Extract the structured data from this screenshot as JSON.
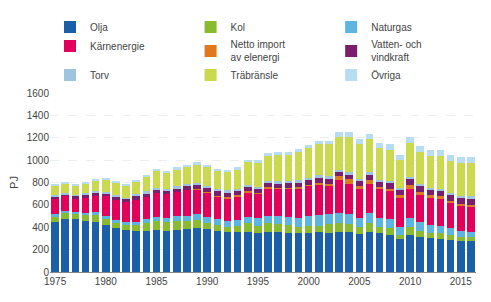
{
  "chart_data": {
    "type": "bar",
    "stacked": true,
    "ylabel": "PJ",
    "x": [
      1975,
      1976,
      1977,
      1978,
      1979,
      1980,
      1981,
      1982,
      1983,
      1984,
      1985,
      1986,
      1987,
      1988,
      1989,
      1990,
      1991,
      1992,
      1993,
      1994,
      1995,
      1996,
      1997,
      1998,
      1999,
      2000,
      2001,
      2002,
      2003,
      2004,
      2005,
      2006,
      2007,
      2008,
      2009,
      2010,
      2011,
      2012,
      2013,
      2014,
      2015,
      2016
    ],
    "series": [
      {
        "name": "Olja",
        "color": "#1a5fa8",
        "values": [
          445,
          475,
          470,
          460,
          450,
          420,
          390,
          375,
          365,
          370,
          375,
          370,
          375,
          380,
          390,
          380,
          365,
          360,
          355,
          355,
          350,
          355,
          355,
          350,
          345,
          345,
          355,
          350,
          360,
          355,
          340,
          355,
          345,
          335,
          295,
          330,
          315,
          305,
          295,
          285,
          280,
          275
        ]
      },
      {
        "name": "Kol",
        "color": "#8aba2e",
        "values": [
          55,
          55,
          50,
          50,
          60,
          55,
          50,
          45,
          55,
          65,
          80,
          75,
          85,
          80,
          75,
          60,
          55,
          45,
          55,
          80,
          65,
          80,
          75,
          70,
          60,
          65,
          60,
          75,
          80,
          75,
          60,
          80,
          60,
          55,
          40,
          70,
          50,
          45,
          50,
          45,
          35,
          35
        ]
      },
      {
        "name": "Naturgas",
        "color": "#5bb5e0",
        "values": [
          15,
          15,
          15,
          20,
          25,
          25,
          25,
          25,
          30,
          35,
          35,
          40,
          40,
          45,
          50,
          55,
          55,
          55,
          55,
          60,
          65,
          70,
          70,
          75,
          80,
          90,
          95,
          90,
          90,
          90,
          80,
          90,
          80,
          80,
          70,
          85,
          80,
          70,
          70,
          60,
          50,
          50
        ]
      },
      {
        "name": "Kärnenergie",
        "color": "#e2005a",
        "values": [
          135,
          130,
          120,
          135,
          145,
          175,
          180,
          180,
          195,
          200,
          215,
          210,
          215,
          225,
          225,
          215,
          200,
          200,
          210,
          215,
          225,
          240,
          245,
          250,
          265,
          270,
          270,
          255,
          290,
          270,
          260,
          265,
          255,
          260,
          260,
          260,
          245,
          245,
          240,
          230,
          225,
          225
        ]
      },
      {
        "name": "Netto import\nav elenergi",
        "color": "#e07820",
        "values": [
          0,
          0,
          0,
          0,
          0,
          0,
          0,
          0,
          0,
          0,
          0,
          0,
          0,
          0,
          5,
          5,
          5,
          10,
          10,
          10,
          5,
          15,
          10,
          10,
          10,
          10,
          15,
          20,
          35,
          40,
          30,
          35,
          20,
          15,
          20,
          30,
          25,
          20,
          20,
          15,
          15,
          10
        ]
      },
      {
        "name": "Vatten- och\nvindkraft",
        "color": "#7a1e6e",
        "values": [
          25,
          20,
          25,
          30,
          30,
          30,
          30,
          30,
          35,
          35,
          30,
          30,
          30,
          35,
          35,
          35,
          45,
          40,
          35,
          40,
          30,
          35,
          35,
          40,
          40,
          40,
          45,
          45,
          35,
          40,
          40,
          40,
          45,
          50,
          50,
          55,
          50,
          50,
          50,
          55,
          60,
          65
        ]
      },
      {
        "name": "Torv",
        "color": "#9ec4e0",
        "values": [
          10,
          10,
          10,
          10,
          10,
          10,
          10,
          10,
          15,
          15,
          20,
          20,
          20,
          20,
          20,
          20,
          20,
          20,
          20,
          20,
          20,
          20,
          20,
          20,
          20,
          20,
          25,
          25,
          25,
          25,
          25,
          25,
          20,
          20,
          15,
          20,
          20,
          20,
          15,
          15,
          15,
          15
        ]
      },
      {
        "name": "Träbränsle",
        "color": "#cad94e",
        "values": [
          90,
          85,
          80,
          85,
          95,
          110,
          115,
          110,
          115,
          130,
          150,
          145,
          155,
          155,
          165,
          165,
          155,
          165,
          175,
          200,
          215,
          225,
          235,
          235,
          250,
          265,
          275,
          280,
          295,
          310,
          310,
          295,
          280,
          280,
          255,
          300,
          285,
          285,
          295,
          285,
          290,
          295
        ]
      },
      {
        "name": "Övriga",
        "color": "#b8ddf2",
        "values": [
          10,
          10,
          10,
          10,
          10,
          10,
          10,
          10,
          10,
          10,
          10,
          15,
          15,
          15,
          15,
          20,
          20,
          20,
          20,
          20,
          25,
          25,
          25,
          25,
          30,
          30,
          35,
          35,
          40,
          45,
          45,
          50,
          50,
          50,
          45,
          55,
          55,
          50,
          55,
          55,
          55,
          60
        ]
      }
    ],
    "xlim": [
      1974.5,
      2016.5
    ],
    "xticks": [
      1975,
      1980,
      1985,
      1990,
      1995,
      2000,
      2005,
      2010,
      2015
    ],
    "ylim": [
      0,
      1600
    ],
    "yticks": [
      0,
      200,
      400,
      600,
      800,
      1000,
      1200,
      1400,
      1600
    ],
    "grid": true,
    "legend": "top"
  }
}
